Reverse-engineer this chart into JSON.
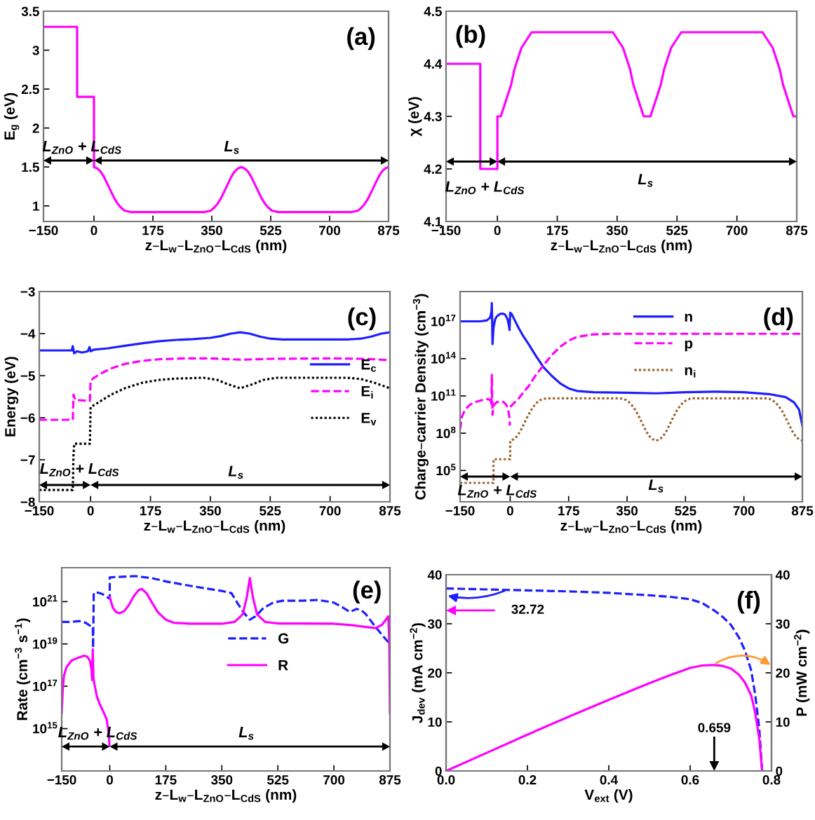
{
  "chart_data": [
    {
      "type": "line",
      "annotations": [
        "(a)",
        "L$_{ZnO}$ + L$_{CdS}$",
        "L$_{s}$"
      ],
      "xlabel": "z–L$_{w}$–L$_{ZnO}$–L$_{CdS}$ (nm)",
      "ylabel": "E$_{g}$ (eV)",
      "xlim": [
        -150,
        875
      ],
      "xticks": [
        -150,
        0,
        175,
        350,
        525,
        700,
        875
      ],
      "ylim": [
        0.8,
        3.5
      ],
      "yticks": [
        1,
        1.5,
        2,
        2.5,
        3,
        3.5
      ],
      "series": [
        {
          "color": "#ff00ff",
          "line_style": "solid",
          "x": [
            -150,
            -50,
            -50,
            0,
            0,
            10,
            20,
            30,
            40,
            50,
            60,
            70,
            80,
            90,
            100,
            110,
            327.5,
            337.5,
            347.5,
            357.5,
            367.5,
            377.5,
            387.5,
            397.5,
            407.5,
            417.5,
            427.5,
            437.5,
            447.5,
            457.5,
            467.5,
            477.5,
            487.5,
            497.5,
            507.5,
            517.5,
            527.5,
            537.5,
            547.5,
            765,
            775,
            785,
            795,
            805,
            815,
            825,
            835,
            845,
            855,
            865,
            875
          ],
          "values": [
            3.3,
            3.3,
            2.4,
            2.4,
            1.5,
            1.48,
            1.44,
            1.37,
            1.28,
            1.19,
            1.1,
            1.03,
            0.98,
            0.94,
            0.93,
            0.92,
            0.92,
            0.93,
            0.94,
            0.98,
            1.03,
            1.1,
            1.19,
            1.28,
            1.37,
            1.44,
            1.48,
            1.5,
            1.48,
            1.44,
            1.37,
            1.28,
            1.19,
            1.1,
            1.03,
            0.98,
            0.94,
            0.93,
            0.92,
            0.92,
            0.93,
            0.94,
            0.98,
            1.03,
            1.1,
            1.19,
            1.28,
            1.37,
            1.44,
            1.48,
            1.5
          ]
        }
      ]
    },
    {
      "type": "line",
      "annotations": [
        "(b)",
        "L$_{ZnO}$ + L$_{CdS}$",
        "L$_{s}$"
      ],
      "xlabel": "z–L$_{w}$–L$_{ZnO}$–L$_{CdS}$ (nm)",
      "ylabel": "χ (eV)",
      "xlim": [
        -150,
        875
      ],
      "xticks": [
        -150,
        0,
        175,
        350,
        525,
        700,
        875
      ],
      "ylim": [
        4.1,
        4.5
      ],
      "yticks": [
        4.1,
        4.2,
        4.3,
        4.4,
        4.5
      ],
      "series": [
        {
          "color": "#ff00ff",
          "line_style": "solid",
          "x": [
            -150,
            -50,
            -50,
            0,
            0,
            10,
            20,
            30,
            40,
            50,
            60,
            70,
            80,
            90,
            100,
            110,
            327.5,
            337.5,
            347.5,
            357.5,
            367.5,
            377.5,
            387.5,
            397.5,
            407.5,
            417.5,
            427.5,
            437.5,
            447.5,
            457.5,
            467.5,
            477.5,
            487.5,
            497.5,
            507.5,
            517.5,
            527.5,
            537.5,
            547.5,
            765,
            775,
            785,
            795,
            805,
            815,
            825,
            835,
            845,
            855,
            865,
            875
          ],
          "values": [
            4.4,
            4.4,
            4.2,
            4.2,
            4.3,
            4.3,
            4.32,
            4.34,
            4.36,
            4.39,
            4.41,
            4.43,
            4.44,
            4.45,
            4.46,
            4.46,
            4.46,
            4.46,
            4.45,
            4.44,
            4.43,
            4.41,
            4.39,
            4.36,
            4.34,
            4.32,
            4.3,
            4.3,
            4.3,
            4.32,
            4.34,
            4.36,
            4.39,
            4.41,
            4.43,
            4.44,
            4.45,
            4.46,
            4.46,
            4.46,
            4.46,
            4.45,
            4.44,
            4.43,
            4.41,
            4.39,
            4.36,
            4.34,
            4.32,
            4.3,
            4.3
          ]
        }
      ]
    },
    {
      "type": "line",
      "annotations": [
        "(c)",
        "L$_{ZnO}$ + L$_{CdS}$",
        "L$_{s}$"
      ],
      "xlabel": "z–L$_{w}$–L$_{ZnO}$–L$_{CdS}$ (nm)",
      "ylabel": "Energy (eV)",
      "xlim": [
        -150,
        875
      ],
      "xticks": [
        -150,
        0,
        175,
        350,
        525,
        700,
        875
      ],
      "ylim": [
        -8,
        -3
      ],
      "yticks": [
        -8,
        -7,
        -6,
        -5,
        -4,
        -3
      ],
      "legend": "right",
      "series": [
        {
          "name": "E$_{c}$",
          "color": "#1e1eff",
          "line_style": "solid",
          "x": [
            -150,
            -55,
            -52,
            -48,
            -40,
            -25,
            -8,
            -3,
            0,
            10,
            50,
            100,
            150,
            200,
            250,
            300,
            350,
            380,
            410,
            437.5,
            465,
            495,
            525,
            560,
            650,
            750,
            790,
            820,
            850,
            875
          ],
          "values": [
            -4.4,
            -4.4,
            -4.3,
            -4.47,
            -4.42,
            -4.45,
            -4.42,
            -4.32,
            -4.42,
            -4.38,
            -4.35,
            -4.29,
            -4.23,
            -4.18,
            -4.15,
            -4.13,
            -4.1,
            -4.06,
            -4.0,
            -3.97,
            -4.0,
            -4.07,
            -4.12,
            -4.14,
            -4.14,
            -4.14,
            -4.12,
            -4.07,
            -4.0,
            -3.97
          ]
        },
        {
          "name": "E$_{i}$",
          "color": "#ff00ff",
          "line_style": "dashed",
          "x": [
            -150,
            -52,
            -50,
            -45,
            -2,
            0,
            10,
            30,
            60,
            100,
            150,
            200,
            275,
            350,
            437.5,
            525,
            700,
            800,
            875
          ],
          "values": [
            -6.05,
            -6.05,
            -5.45,
            -5.58,
            -5.6,
            -5.12,
            -5.05,
            -4.95,
            -4.83,
            -4.72,
            -4.65,
            -4.61,
            -4.59,
            -4.59,
            -4.62,
            -4.6,
            -4.59,
            -4.6,
            -4.63
          ]
        },
        {
          "name": "E$_{v}$",
          "color": "#000000",
          "line_style": "dotted",
          "x": [
            -150,
            -52,
            -50,
            -48,
            -2,
            0,
            10,
            30,
            60,
            100,
            150,
            200,
            250,
            330,
            370,
            400,
            437.5,
            475,
            505,
            545,
            750,
            790,
            830,
            875
          ],
          "values": [
            -7.72,
            -7.72,
            -6.9,
            -6.62,
            -6.62,
            -5.75,
            -5.7,
            -5.6,
            -5.45,
            -5.3,
            -5.17,
            -5.1,
            -5.07,
            -5.05,
            -5.1,
            -5.2,
            -5.3,
            -5.2,
            -5.1,
            -5.05,
            -5.05,
            -5.08,
            -5.17,
            -5.3
          ]
        }
      ]
    },
    {
      "type": "line",
      "log": true,
      "annotations": [
        "(d)",
        "L$_{ZnO}$ + L$_{CdS}$",
        "L$_{s}$"
      ],
      "xlabel": "z–L$_{w}$–L$_{ZnO}$–L$_{CdS}$ (nm)",
      "ylabel": "Charge–carrier Density (cm$^{−3}$)",
      "xlim": [
        -150,
        875
      ],
      "xticks": [
        -150,
        0,
        175,
        350,
        525,
        700,
        875
      ],
      "ylim": [
        300,
        2.5e+19
      ],
      "yticks": [
        {
          "value": 100000.0,
          "label": "10$^{5}$"
        },
        {
          "value": 100000000.0,
          "label": "10$^{8}$"
        },
        {
          "value": 100000000000.0,
          "label": "10$^{11}$"
        },
        {
          "value": 100000000000000.0,
          "label": "10$^{14}$"
        },
        {
          "value": 1e+17,
          "label": "10$^{17}$"
        }
      ],
      "legend": "top",
      "series": [
        {
          "name": "n",
          "color": "#1e1eff",
          "line_style": "solid",
          "x": [
            -150,
            -90,
            -70,
            -60,
            -56,
            -55,
            -54,
            -53,
            -50,
            -45,
            -40,
            -30,
            -22,
            -15,
            -8,
            -4,
            -2,
            0,
            4,
            12,
            25,
            40,
            55,
            75,
            100,
            125,
            150,
            175,
            200,
            250,
            350,
            437.5,
            525,
            620,
            700,
            775,
            825,
            850,
            865,
            875
          ],
          "values": [
            1e+17,
            1e+17,
            1.2e+17,
            2e+17,
            6e+17,
            3e+18,
            1e+17,
            1500000000000000.0,
            3e+16,
            1.5e+17,
            2.5e+17,
            4e+17,
            4.2e+17,
            3.5e+17,
            1.5e+17,
            5e+16,
            2e+16,
            5e+17,
            4e+17,
            1.5e+17,
            3e+16,
            6000000000000000.0,
            1500000000000000.0,
            200000000000000.0,
            20000000000000.0,
            4000000000000.0,
            1000000000000.0,
            400000000000.0,
            250000000000.0,
            200000000000.0,
            180000000000.0,
            160000000000.0,
            200000000000.0,
            220000000000.0,
            200000000000.0,
            140000000000.0,
            80000000000.0,
            30000000000.0,
            8000000000.0,
            400000000.0
          ]
        },
        {
          "name": "p",
          "color": "#ff00ff",
          "line_style": "dashed",
          "x": [
            -150,
            -145,
            -135,
            -120,
            -100,
            -80,
            -65,
            -58,
            -56,
            -55,
            -54,
            -53,
            -51,
            -48,
            -40,
            -30,
            -20,
            -12,
            -6,
            -2,
            -1,
            -0.5,
            0,
            10,
            25,
            40,
            55,
            75,
            100,
            125,
            150,
            175,
            200,
            250,
            300,
            875
          ],
          "values": [
            200000000.0,
            2000000000.0,
            8000000000.0,
            20000000000.0,
            35000000000.0,
            50000000000.0,
            56000000000.0,
            40000000000.0,
            16000000000.0,
            5000000000000.0,
            100000000000.0,
            3000000000.0,
            10000000000.0,
            20000000000.0,
            32000000000.0,
            35000000000.0,
            32000000000.0,
            20000000000.0,
            8000000000.0,
            1600000000.0,
            400000000.0,
            null,
            13000000000.0,
            25000000000.0,
            60000000000.0,
            200000000000.0,
            600000000000.0,
            4000000000000.0,
            30000000000000.0,
            200000000000000.0,
            900000000000000.0,
            2800000000000000.0,
            5600000000000000.0,
            9000000000000000.0,
            1e+16,
            1e+16
          ]
        },
        {
          "name": "n$_{i}$",
          "color": "#996633",
          "line_style": "dotted",
          "x": [
            -150,
            -50,
            -50,
            0,
            0,
            10,
            20,
            30,
            40,
            50,
            60,
            70,
            80,
            90,
            100,
            110,
            327.5,
            337.5,
            347.5,
            357.5,
            367.5,
            377.5,
            387.5,
            397.5,
            407.5,
            417.5,
            427.5,
            437.5,
            447.5,
            457.5,
            467.5,
            477.5,
            487.5,
            497.5,
            507.5,
            517.5,
            527.5,
            537.5,
            547.5,
            765,
            775,
            785,
            795,
            805,
            815,
            825,
            835,
            845,
            855,
            865,
            875
          ],
          "values": [
            10000.0,
            10000.0,
            800000.0,
            800000.0,
            25000000.0,
            32000000.0,
            55000000.0,
            140000000.0,
            490000000.0,
            1700000000.0,
            5600000000.0,
            14000000000.0,
            29000000000.0,
            46000000000.0,
            59000000000.0,
            63000000000.0,
            63000000000.0,
            59000000000.0,
            46000000000.0,
            29000000000.0,
            14000000000.0,
            5600000000.0,
            1700000000.0,
            490000000.0,
            140000000.0,
            55000000.0,
            32000000.0,
            25000000.0,
            32000000.0,
            55000000.0,
            140000000.0,
            490000000.0,
            1700000000.0,
            5600000000.0,
            14000000000.0,
            29000000000.0,
            46000000000.0,
            59000000000.0,
            63000000000.0,
            63000000000.0,
            59000000000.0,
            46000000000.0,
            29000000000.0,
            14000000000.0,
            5600000000.0,
            1700000000.0,
            490000000.0,
            140000000.0,
            55000000.0,
            32000000.0,
            25000000.0
          ]
        }
      ]
    },
    {
      "type": "line",
      "log": true,
      "annotations": [
        "(e)",
        "L$_{ZnO}$ + L$_{CdS}$",
        "L$_{s}$"
      ],
      "xlabel": "z–L$_{w}$–L$_{ZnO}$–L$_{CdS}$ (nm)",
      "ylabel": "Rate (cm$^{−3}$ s$^{−1}$)",
      "xlim": [
        -150,
        875
      ],
      "xticks": [
        -150,
        0,
        175,
        350,
        525,
        700,
        875
      ],
      "ylim": [
        10000000000000.0,
        4e+22
      ],
      "yticks": [
        {
          "value": 1000000000000000.0,
          "label": "10$^{15}$"
        },
        {
          "value": 1e+17,
          "label": "10$^{17}$"
        },
        {
          "value": 1e+19,
          "label": "10$^{19}$"
        },
        {
          "value": 1e+21,
          "label": "10$^{21}$"
        }
      ],
      "legend": "center",
      "series": [
        {
          "name": "G",
          "color": "#1e1eff",
          "line_style": "dashed",
          "x": [
            -150,
            -120,
            -95,
            -75,
            -60,
            -53,
            -52,
            -50,
            -45,
            -30,
            -15,
            -2,
            0,
            0,
            40,
            80,
            130,
            175,
            250,
            300,
            350,
            380,
            400,
            420,
            437.5,
            455,
            480,
            510,
            540,
            600,
            650,
            700,
            730,
            750,
            770,
            785,
            800,
            830,
            855,
            875
          ],
          "values": [
            1.1e+20,
            1.1e+20,
            1.2e+20,
            1e+20,
            7e+19,
            6.3e+19,
            6.3e+18,
            2.5e+21,
            2.8e+21,
            2.5e+21,
            2e+21,
            1.4e+21,
            1.4e+21,
            1.4e+22,
            1.5e+22,
            1.6e+22,
            1.3e+22,
            9e+21,
            5.6e+21,
            4.2e+21,
            3.2e+21,
            2.5e+21,
            8e+20,
            2.8e+20,
            1.4e+20,
            2e+20,
            5e+20,
            9e+20,
            1.1e+21,
            1.1e+21,
            1.2e+21,
            9e+20,
            5e+20,
            3.2e+20,
            4.5e+20,
            4e+20,
            2.5e+20,
            6.3e+19,
            2.2e+19,
            1e+19
          ]
        },
        {
          "name": "R",
          "color": "#ff00ff",
          "line_style": "solid",
          "x": [
            -150,
            -147,
            -143,
            -135,
            -120,
            -100,
            -80,
            -70,
            -62,
            -57,
            -55,
            -53,
            -51,
            -48,
            -40,
            -30,
            -20,
            -10,
            -3,
            -1,
            -0.5,
            0,
            10,
            20,
            30,
            45,
            60,
            75,
            90,
            100,
            115,
            130,
            150,
            175,
            200,
            250,
            350,
            390,
            415,
            428,
            437.5,
            447,
            460,
            485,
            525,
            600,
            700,
            760,
            800,
            830,
            850,
            865,
            870,
            873,
            875
          ],
          "values": [
            5600000000000000.0,
            6.3e+16,
            3.2e+17,
            8e+17,
            1.6e+18,
            2.2e+18,
            2.8e+18,
            2.5e+18,
            1.6e+18,
            6.3e+17,
            2e+17,
            5.6e+18,
            2.5e+17,
            1.3e+17,
            3.2e+16,
            1.3e+16,
            6300000000000000.0,
            2800000000000000.0,
            630000000000000.0,
            160000000000000.0,
            null,
            1.6e+21,
            5e+20,
            3.2e+20,
            2.8e+20,
            3.5e+20,
            7e+20,
            1.8e+21,
            3.5e+21,
            4e+21,
            2.5e+21,
            1e+21,
            3.2e+20,
            1.4e+20,
            1e+20,
            9e+19,
            9e+19,
            1.1e+20,
            2.5e+20,
            1.6e+21,
            1.3e+22,
            1.6e+21,
            2.5e+20,
            1.1e+20,
            9.3e+19,
            9.3e+19,
            9e+19,
            7.6e+19,
            6.3e+19,
            5.6e+19,
            8e+19,
            1.6e+20,
            2e+20,
            1e+19,
            5600000000000000.0
          ]
        }
      ]
    },
    {
      "type": "line",
      "annotations": [
        "(f)",
        "32.72",
        "0.659"
      ],
      "xlabel": "V$_{ext}$ (V)",
      "ylabel": "J$_{dev}$ (mA cm$^{−2}$)",
      "y2label": "P (mW cm$^{−2}$)",
      "xlim": [
        0,
        0.8
      ],
      "xticks": [
        {
          "value": 0,
          "label": "0.0"
        },
        0.2,
        0.4,
        0.6,
        0.8
      ],
      "ylim": [
        0,
        40
      ],
      "yticks": [
        0,
        10,
        20,
        30,
        40
      ],
      "y2lim": [
        0,
        40
      ],
      "y2ticks": [
        0,
        10,
        20,
        30,
        40
      ],
      "series": [
        {
          "color": "#1e1eff",
          "line_style": "dashed",
          "x": [
            0,
            0.1,
            0.2,
            0.3,
            0.4,
            0.5,
            0.55,
            0.6,
            0.63,
            0.659,
            0.68,
            0.7,
            0.72,
            0.735,
            0.75,
            0.76,
            0.77,
            0.777
          ],
          "values": [
            37.2,
            37.0,
            36.8,
            36.6,
            36.3,
            35.8,
            35.5,
            35.0,
            34.2,
            32.72,
            31.4,
            29.8,
            27.2,
            24.5,
            20.5,
            15.5,
            8.5,
            0
          ]
        },
        {
          "color": "#ff00ff",
          "line_style": "solid",
          "axis": "y2",
          "x": [
            0,
            0.1,
            0.2,
            0.3,
            0.4,
            0.5,
            0.55,
            0.6,
            0.63,
            0.659,
            0.68,
            0.7,
            0.72,
            0.735,
            0.75,
            0.76,
            0.77,
            0.777
          ],
          "values": [
            0,
            3.7,
            7.4,
            11.0,
            14.5,
            17.9,
            19.5,
            21.0,
            21.5,
            21.6,
            21.4,
            20.9,
            19.6,
            18.0,
            15.4,
            11.8,
            6.5,
            0
          ]
        }
      ]
    }
  ]
}
